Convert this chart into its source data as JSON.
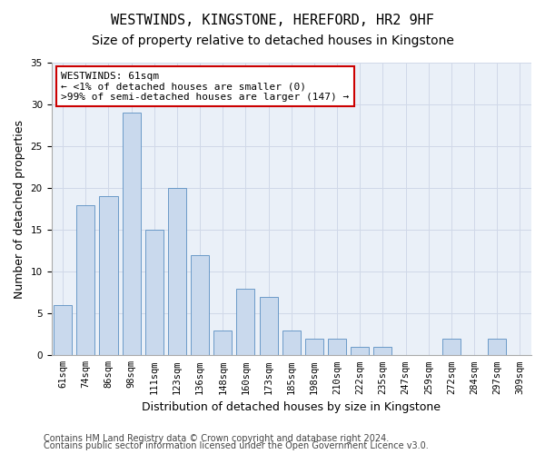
{
  "title": "WESTWINDS, KINGSTONE, HEREFORD, HR2 9HF",
  "subtitle": "Size of property relative to detached houses in Kingstone",
  "xlabel": "Distribution of detached houses by size in Kingstone",
  "ylabel": "Number of detached properties",
  "categories": [
    "61sqm",
    "74sqm",
    "86sqm",
    "98sqm",
    "111sqm",
    "123sqm",
    "136sqm",
    "148sqm",
    "160sqm",
    "173sqm",
    "185sqm",
    "198sqm",
    "210sqm",
    "222sqm",
    "235sqm",
    "247sqm",
    "259sqm",
    "272sqm",
    "284sqm",
    "297sqm",
    "309sqm"
  ],
  "values": [
    6,
    18,
    19,
    29,
    15,
    20,
    12,
    3,
    8,
    7,
    3,
    2,
    2,
    1,
    1,
    0,
    0,
    2,
    0,
    2,
    0
  ],
  "bar_color": "#c9d9ed",
  "bar_edge_color": "#5a8fc2",
  "highlight_bar_index": 0,
  "annotation_box_text": "WESTWINDS: 61sqm\n← <1% of detached houses are smaller (0)\n>99% of semi-detached houses are larger (147) →",
  "annotation_box_color": "#ffffff",
  "annotation_box_edge_color": "#cc0000",
  "ylim": [
    0,
    35
  ],
  "yticks": [
    0,
    5,
    10,
    15,
    20,
    25,
    30,
    35
  ],
  "grid_color": "#d0d8e8",
  "background_color": "#eaf0f8",
  "footer_line1": "Contains HM Land Registry data © Crown copyright and database right 2024.",
  "footer_line2": "Contains public sector information licensed under the Open Government Licence v3.0.",
  "title_fontsize": 11,
  "subtitle_fontsize": 10,
  "xlabel_fontsize": 9,
  "ylabel_fontsize": 9,
  "tick_fontsize": 7.5,
  "annotation_fontsize": 8,
  "footer_fontsize": 7
}
